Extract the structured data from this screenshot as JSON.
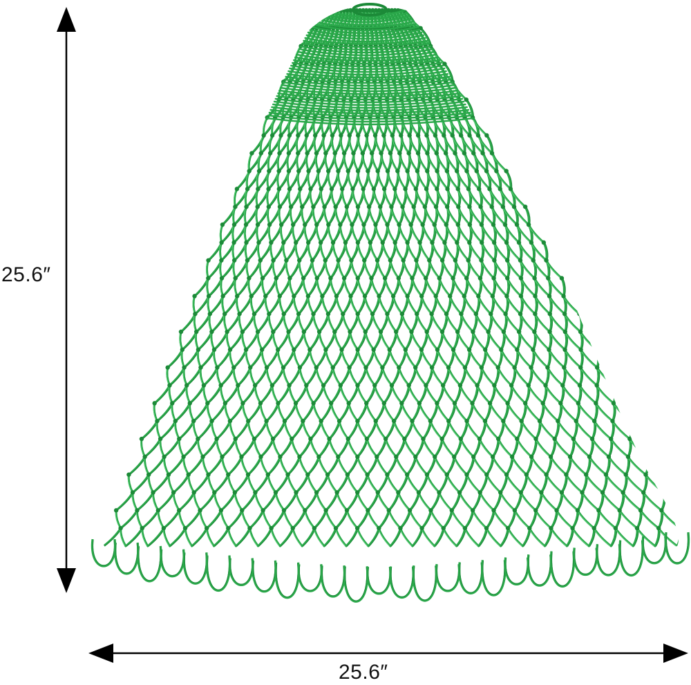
{
  "dimensions": {
    "height_label": "25.6″",
    "width_label": "25.6″"
  },
  "product": {
    "icon": "fishing-net",
    "net_color": "#2aa84a",
    "net_shadow_color": "#1c8a38",
    "net_highlight_color": "#5cd07a"
  },
  "arrow_color": "#000000",
  "background_color": "#ffffff"
}
